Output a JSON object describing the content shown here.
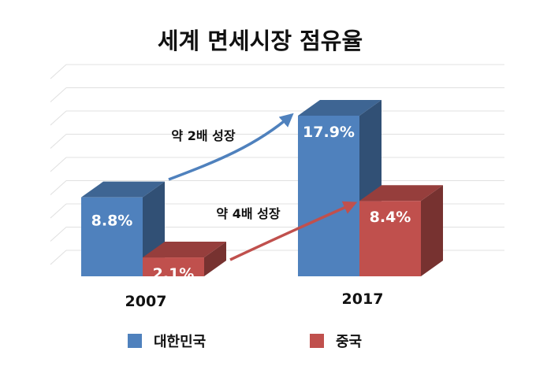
{
  "chart_data": {
    "type": "bar",
    "title": "세계 면세시장 점유율",
    "categories": [
      "2007",
      "2017"
    ],
    "series": [
      {
        "name": "대한민국",
        "values": [
          8.8,
          17.9
        ],
        "labels": [
          "8.8%",
          "17.9%"
        ],
        "color": "#4f81bd"
      },
      {
        "name": "중국",
        "values": [
          2.1,
          8.4
        ],
        "labels": [
          "2.1%",
          "8.4%"
        ],
        "color": "#c0504d"
      }
    ],
    "annotations": [
      "약 2배 성장",
      "약 4배 성장"
    ],
    "ylim": [
      0,
      20
    ],
    "grid": true,
    "legend_position": "bottom"
  }
}
